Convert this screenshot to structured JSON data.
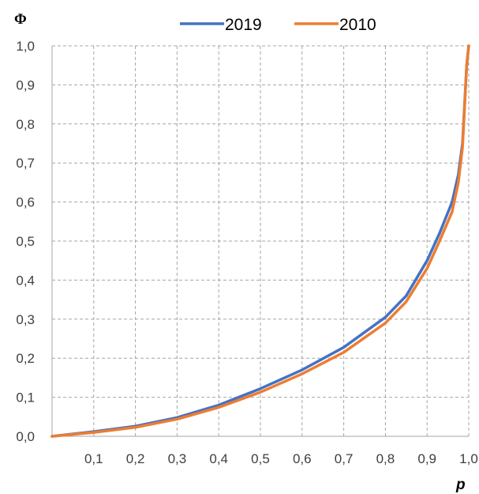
{
  "chart_data": {
    "type": "line",
    "title": "",
    "xlabel": "p",
    "ylabel": "Φ",
    "xlim": [
      0,
      1.0
    ],
    "ylim": [
      0,
      1.0
    ],
    "grid": true,
    "legend_position": "top",
    "x_ticks": [
      "0,1",
      "0,2",
      "0,3",
      "0,4",
      "0,5",
      "0,6",
      "0,7",
      "0,8",
      "0,9",
      "1,0"
    ],
    "y_ticks": [
      "0,0",
      "0,1",
      "0,2",
      "0,3",
      "0,4",
      "0,5",
      "0,6",
      "0,7",
      "0,8",
      "0,9",
      "1,0"
    ],
    "series": [
      {
        "name": "2019",
        "color": "#4472C4",
        "points": [
          [
            0.0,
            0.0
          ],
          [
            0.1,
            0.012
          ],
          [
            0.2,
            0.026
          ],
          [
            0.3,
            0.048
          ],
          [
            0.4,
            0.08
          ],
          [
            0.5,
            0.122
          ],
          [
            0.6,
            0.17
          ],
          [
            0.7,
            0.228
          ],
          [
            0.8,
            0.305
          ],
          [
            0.85,
            0.36
          ],
          [
            0.9,
            0.45
          ],
          [
            0.93,
            0.52
          ],
          [
            0.96,
            0.6
          ],
          [
            0.975,
            0.67
          ],
          [
            0.985,
            0.75
          ],
          [
            0.995,
            0.95
          ],
          [
            1.0,
            1.0
          ]
        ]
      },
      {
        "name": "2010",
        "color": "#ED7D31",
        "points": [
          [
            0.0,
            0.0
          ],
          [
            0.1,
            0.01
          ],
          [
            0.2,
            0.023
          ],
          [
            0.3,
            0.044
          ],
          [
            0.4,
            0.074
          ],
          [
            0.5,
            0.113
          ],
          [
            0.6,
            0.16
          ],
          [
            0.7,
            0.215
          ],
          [
            0.8,
            0.29
          ],
          [
            0.85,
            0.345
          ],
          [
            0.9,
            0.43
          ],
          [
            0.93,
            0.5
          ],
          [
            0.96,
            0.575
          ],
          [
            0.975,
            0.65
          ],
          [
            0.985,
            0.74
          ],
          [
            0.995,
            0.95
          ],
          [
            1.0,
            1.0
          ]
        ]
      }
    ]
  }
}
